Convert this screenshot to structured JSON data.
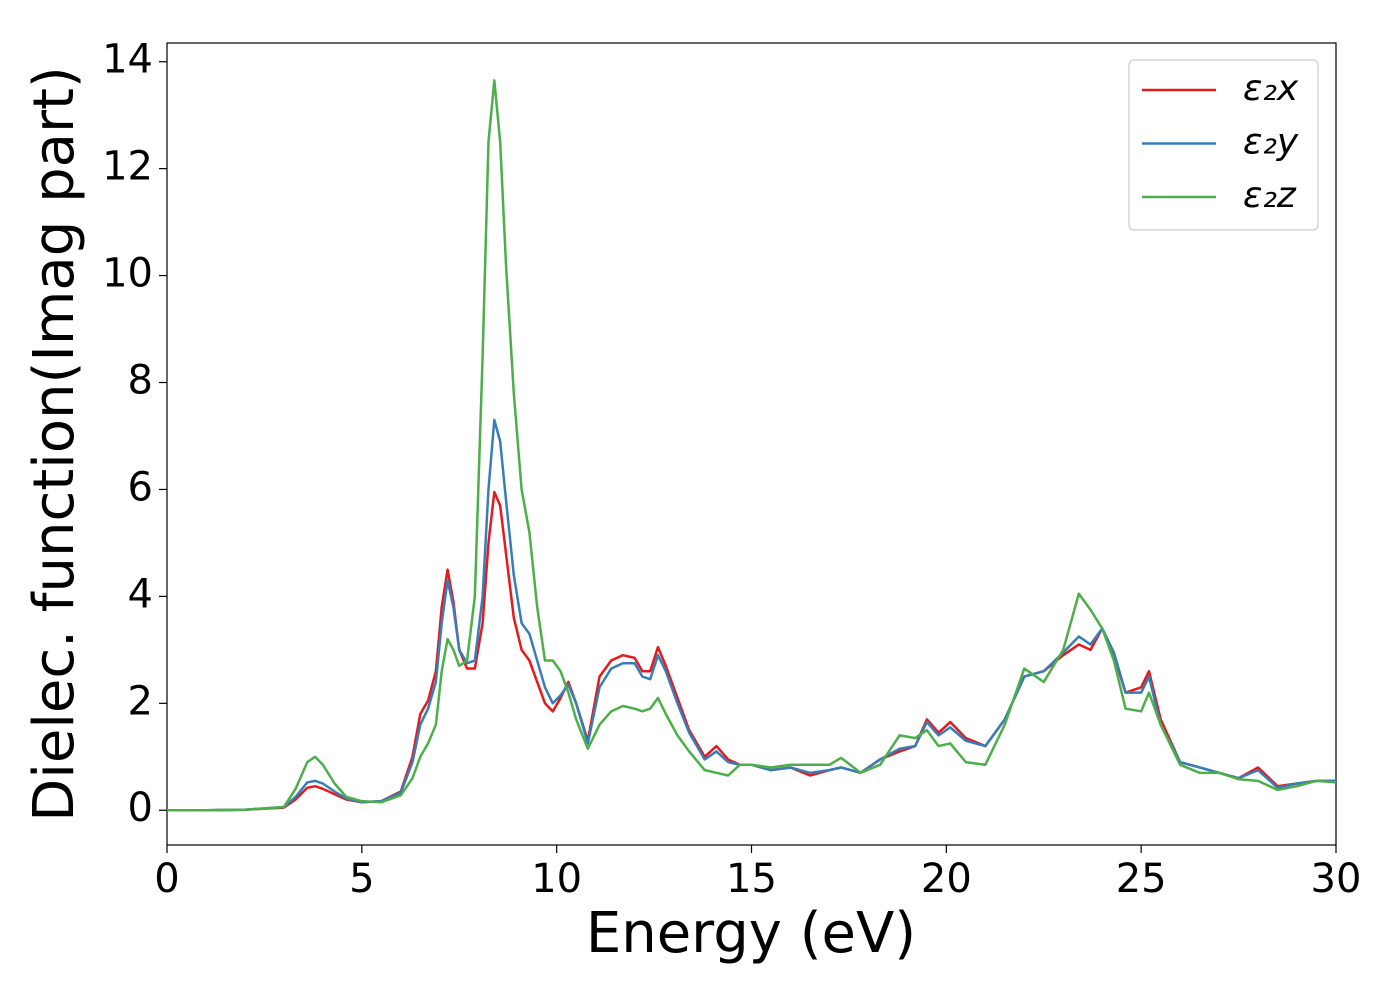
{
  "chart_data": {
    "type": "line",
    "xlabel": "Energy (eV)",
    "ylabel": "Dielec. function(Imag part)",
    "xlim": [
      0,
      30
    ],
    "ylim": [
      -0.65,
      14.35
    ],
    "xticks": [
      0,
      5,
      10,
      15,
      20,
      25,
      30
    ],
    "yticks": [
      0,
      2,
      4,
      6,
      8,
      10,
      12,
      14
    ],
    "legend": "upper right",
    "x": [
      0,
      1,
      2,
      3,
      3.3,
      3.6,
      3.8,
      4.0,
      4.3,
      4.6,
      5,
      5.5,
      6,
      6.3,
      6.5,
      6.7,
      6.9,
      7.05,
      7.2,
      7.35,
      7.5,
      7.7,
      7.9,
      8.1,
      8.25,
      8.4,
      8.55,
      8.7,
      8.9,
      9.1,
      9.3,
      9.5,
      9.7,
      9.9,
      10.1,
      10.3,
      10.5,
      10.8,
      11.1,
      11.4,
      11.7,
      12,
      12.2,
      12.4,
      12.6,
      12.8,
      13.1,
      13.4,
      13.8,
      14.1,
      14.4,
      14.7,
      15,
      15.5,
      16,
      16.5,
      17,
      17.3,
      17.8,
      18.3,
      18.8,
      19.2,
      19.5,
      19.8,
      20.1,
      20.5,
      21,
      21.5,
      22,
      22.5,
      23,
      23.4,
      23.7,
      24,
      24.3,
      24.6,
      25,
      25.2,
      25.5,
      26,
      26.5,
      27,
      27.5,
      28,
      28.5,
      29,
      29.5,
      30
    ],
    "series": [
      {
        "name": "ε₂x",
        "color": "#e41a1c",
        "values": [
          0,
          0,
          0.01,
          0.05,
          0.2,
          0.42,
          0.45,
          0.4,
          0.3,
          0.2,
          0.15,
          0.17,
          0.35,
          1.0,
          1.8,
          2.05,
          2.6,
          3.8,
          4.5,
          3.9,
          3.0,
          2.65,
          2.65,
          3.5,
          5.0,
          5.95,
          5.7,
          4.8,
          3.6,
          3.0,
          2.8,
          2.4,
          2.0,
          1.85,
          2.1,
          2.4,
          2.0,
          1.3,
          2.5,
          2.8,
          2.9,
          2.85,
          2.6,
          2.6,
          3.05,
          2.7,
          2.1,
          1.5,
          1.0,
          1.2,
          0.95,
          0.85,
          0.85,
          0.75,
          0.8,
          0.65,
          0.75,
          0.8,
          0.7,
          0.95,
          1.1,
          1.2,
          1.7,
          1.45,
          1.65,
          1.35,
          1.2,
          1.7,
          2.5,
          2.6,
          2.9,
          3.1,
          3.0,
          3.4,
          2.9,
          2.2,
          2.3,
          2.6,
          1.7,
          0.9,
          0.8,
          0.7,
          0.6,
          0.8,
          0.45,
          0.5,
          0.55,
          0.55
        ]
      },
      {
        "name": "ε₂y",
        "color": "#377eb8",
        "values": [
          0,
          0,
          0.01,
          0.06,
          0.25,
          0.52,
          0.55,
          0.5,
          0.35,
          0.22,
          0.15,
          0.17,
          0.33,
          0.9,
          1.6,
          1.9,
          2.4,
          3.5,
          4.3,
          3.8,
          3.0,
          2.75,
          2.8,
          4.0,
          6.0,
          7.3,
          6.9,
          5.8,
          4.4,
          3.5,
          3.3,
          2.8,
          2.3,
          2.0,
          2.15,
          2.35,
          2.0,
          1.25,
          2.3,
          2.65,
          2.75,
          2.75,
          2.5,
          2.45,
          2.9,
          2.6,
          2.0,
          1.45,
          0.95,
          1.1,
          0.9,
          0.85,
          0.85,
          0.75,
          0.8,
          0.7,
          0.75,
          0.8,
          0.7,
          0.95,
          1.15,
          1.2,
          1.65,
          1.4,
          1.55,
          1.3,
          1.2,
          1.7,
          2.5,
          2.6,
          2.95,
          3.25,
          3.1,
          3.4,
          2.95,
          2.2,
          2.2,
          2.5,
          1.6,
          0.9,
          0.8,
          0.7,
          0.6,
          0.75,
          0.42,
          0.5,
          0.55,
          0.55
        ]
      },
      {
        "name": "ε₂z",
        "color": "#4daf4a",
        "values": [
          0,
          0,
          0.01,
          0.06,
          0.4,
          0.9,
          1.0,
          0.85,
          0.5,
          0.25,
          0.17,
          0.15,
          0.28,
          0.6,
          1.0,
          1.25,
          1.6,
          2.6,
          3.2,
          3.0,
          2.7,
          2.8,
          4.0,
          8.5,
          12.5,
          13.65,
          12.5,
          10.2,
          7.8,
          6.0,
          5.2,
          3.8,
          2.8,
          2.8,
          2.6,
          2.2,
          1.7,
          1.15,
          1.6,
          1.85,
          1.95,
          1.9,
          1.85,
          1.9,
          2.1,
          1.8,
          1.4,
          1.1,
          0.75,
          0.7,
          0.65,
          0.85,
          0.85,
          0.8,
          0.85,
          0.85,
          0.85,
          0.98,
          0.7,
          0.85,
          1.4,
          1.35,
          1.5,
          1.2,
          1.25,
          0.9,
          0.85,
          1.6,
          2.65,
          2.4,
          3.0,
          4.05,
          3.75,
          3.4,
          2.8,
          1.9,
          1.85,
          2.2,
          1.6,
          0.85,
          0.7,
          0.7,
          0.58,
          0.55,
          0.38,
          0.45,
          0.55,
          0.52
        ]
      }
    ]
  }
}
